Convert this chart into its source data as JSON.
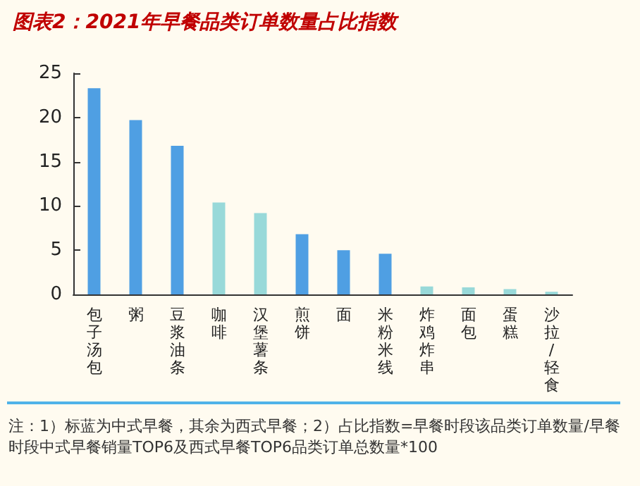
{
  "chart_data": {
    "type": "bar",
    "title": "图表2：2021年早餐品类订单数量占比指数",
    "categories": [
      "包子汤包",
      "粥",
      "豆浆油条",
      "咖啡",
      "汉堡薯条",
      "煎饼",
      "面",
      "米粉米线",
      "炸鸡炸串",
      "面包",
      "蛋糕",
      "沙拉/轻食"
    ],
    "values": [
      23.3,
      19.7,
      16.8,
      10.4,
      9.2,
      6.8,
      5.0,
      4.6,
      0.9,
      0.8,
      0.6,
      0.3
    ],
    "colors": [
      "#4f9fe3",
      "#4f9fe3",
      "#4f9fe3",
      "#98d9d9",
      "#98d9d9",
      "#4f9fe3",
      "#4f9fe3",
      "#4f9fe3",
      "#98d9d9",
      "#98d9d9",
      "#98d9d9",
      "#98d9d9"
    ],
    "ylim": [
      0,
      25
    ],
    "yticks": [
      0,
      5,
      10,
      15,
      20,
      25
    ],
    "grid": false,
    "annotations": [
      "注：1）标蓝为中式早餐，其余为西式早餐；2）占比指数=早餐时段该品类订单数量/早餐时段中式早餐销量TOP6及西式早餐TOP6品类订单总数量*100"
    ]
  }
}
